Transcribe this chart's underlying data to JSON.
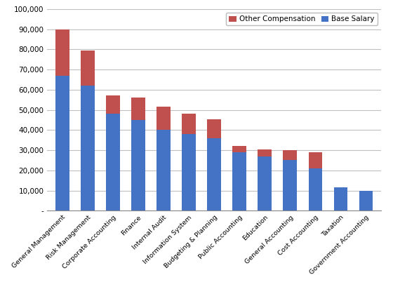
{
  "categories": [
    "General Management",
    "Risk Management",
    "Corporate Accounting",
    "Finance",
    "Internal Audit",
    "Information System",
    "Budgeting & Planning",
    "Public Accounting",
    "Education",
    "General Accounting",
    "Cost Accounting",
    "Taxation",
    "Government Accounting"
  ],
  "base_salary": [
    67000,
    62000,
    48000,
    45000,
    40000,
    38000,
    36000,
    29000,
    27000,
    25000,
    21000,
    11500,
    10000
  ],
  "other_compensation": [
    23000,
    17500,
    9000,
    11000,
    11500,
    10000,
    9500,
    3000,
    3500,
    5000,
    8000,
    0,
    0
  ],
  "base_color": "#4472C4",
  "other_color": "#C0504D",
  "ylim": [
    0,
    100000
  ],
  "yticks": [
    0,
    10000,
    20000,
    30000,
    40000,
    50000,
    60000,
    70000,
    80000,
    90000,
    100000
  ],
  "ytick_labels": [
    "-",
    "10,000",
    "20,000",
    "30,000",
    "40,000",
    "50,000",
    "60,000",
    "70,000",
    "80,000",
    "90,000",
    "100,000"
  ],
  "legend_labels": [
    "Other Compensation",
    "Base Salary"
  ],
  "background_color": "#FFFFFF",
  "grid_color": "#C0C0C0"
}
